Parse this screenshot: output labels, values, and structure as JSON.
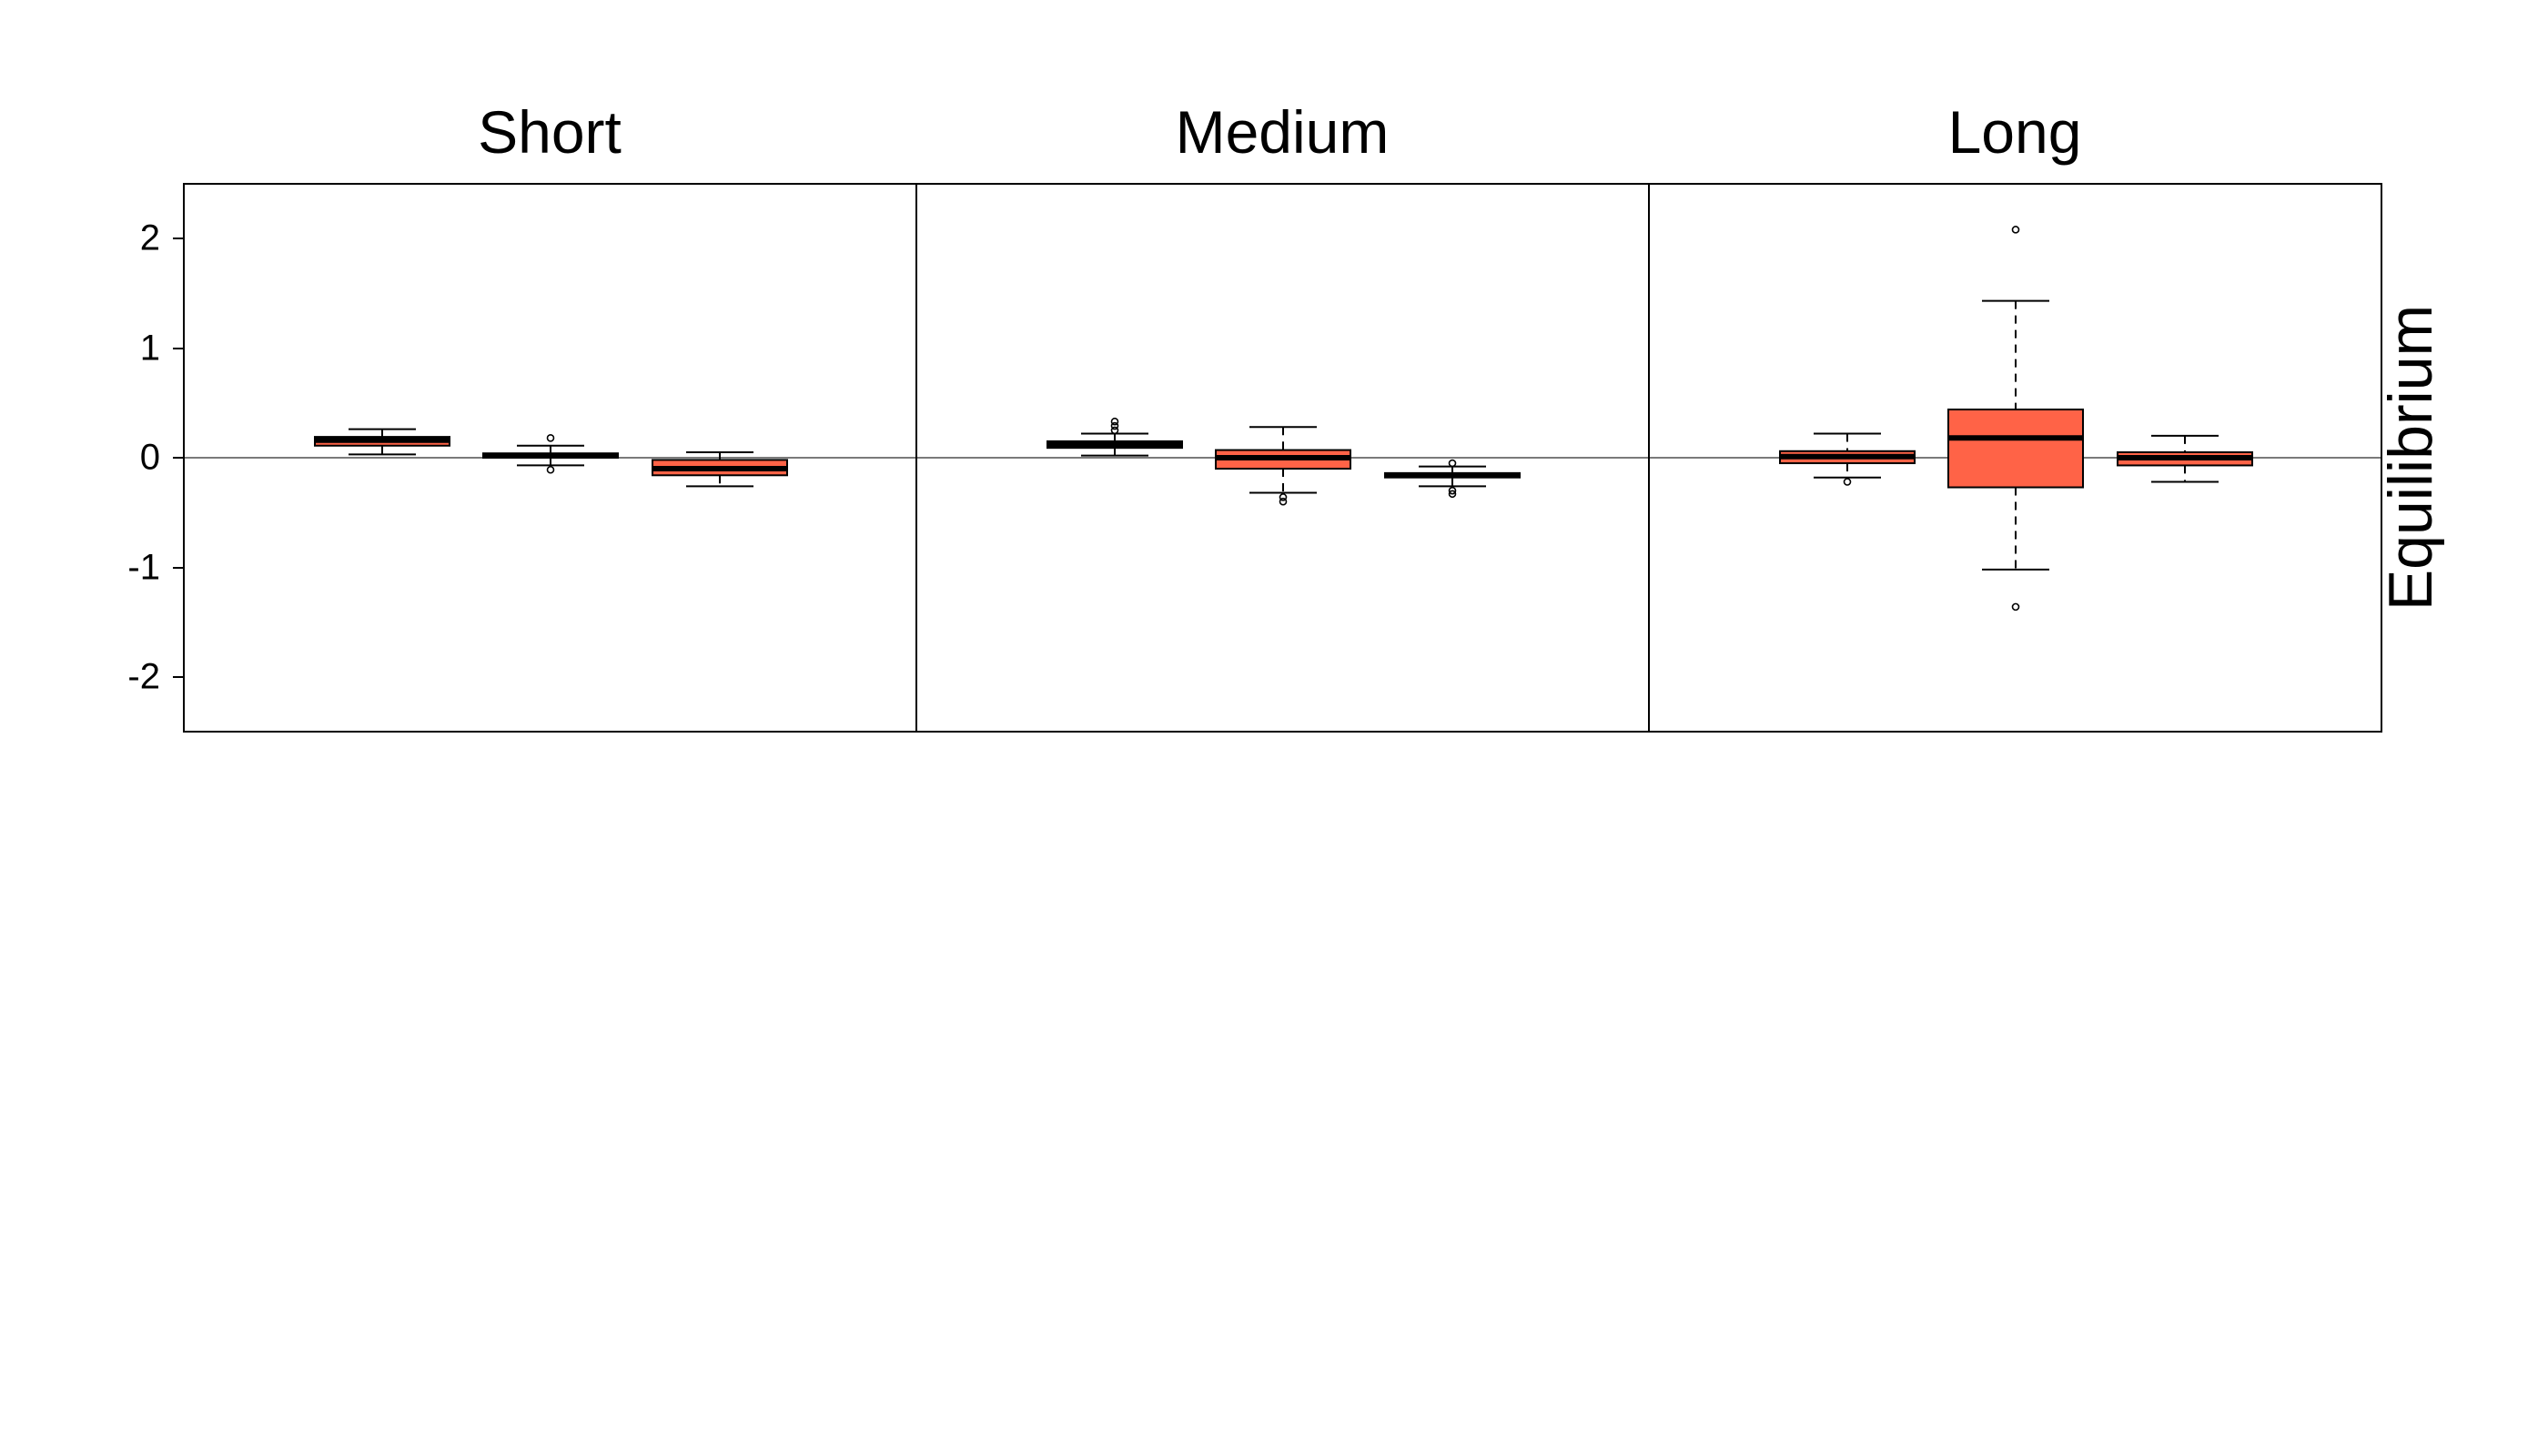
{
  "chart_data": {
    "type": "box",
    "panels": [
      {
        "title": "Short",
        "boxes": [
          {
            "whisker_low": 0.03,
            "q1": 0.11,
            "median": 0.16,
            "q3": 0.19,
            "whisker_high": 0.26,
            "outliers": []
          },
          {
            "whisker_low": -0.07,
            "q1": 0.0,
            "median": 0.02,
            "q3": 0.04,
            "whisker_high": 0.11,
            "outliers": [
              0.18,
              -0.11
            ]
          },
          {
            "whisker_low": -0.26,
            "q1": -0.16,
            "median": -0.1,
            "q3": -0.02,
            "whisker_high": 0.05,
            "outliers": []
          }
        ]
      },
      {
        "title": "Medium",
        "boxes": [
          {
            "whisker_low": 0.02,
            "q1": 0.09,
            "median": 0.12,
            "q3": 0.15,
            "whisker_high": 0.22,
            "outliers": [
              0.25,
              0.29,
              0.33
            ]
          },
          {
            "whisker_low": -0.32,
            "q1": -0.1,
            "median": 0.0,
            "q3": 0.07,
            "whisker_high": 0.28,
            "outliers": [
              -0.36,
              -0.4
            ]
          },
          {
            "whisker_low": -0.26,
            "q1": -0.18,
            "median": -0.16,
            "q3": -0.14,
            "whisker_high": -0.08,
            "outliers": [
              -0.05,
              -0.3,
              -0.33
            ]
          }
        ]
      },
      {
        "title": "Long",
        "boxes": [
          {
            "whisker_low": -0.18,
            "q1": -0.05,
            "median": 0.01,
            "q3": 0.06,
            "whisker_high": 0.22,
            "outliers": [
              -0.22
            ]
          },
          {
            "whisker_low": -1.02,
            "q1": -0.27,
            "median": 0.18,
            "q3": 0.44,
            "whisker_high": 1.43,
            "outliers": [
              2.08,
              -1.36
            ]
          },
          {
            "whisker_low": -0.22,
            "q1": -0.07,
            "median": 0.0,
            "q3": 0.05,
            "whisker_high": 0.2,
            "outliers": []
          }
        ]
      }
    ],
    "ylim": [
      -2.5,
      2.5
    ],
    "yticks": [
      2,
      1,
      0,
      -1,
      -2
    ],
    "ytick_labels": [
      "2",
      "1",
      "0",
      "-1",
      "-2"
    ],
    "reference_line": 0,
    "strip_label": "Equilibrium",
    "box_color": "#FF6347",
    "xlabel": "",
    "ylabel": "",
    "grid": false,
    "legend": "none"
  }
}
